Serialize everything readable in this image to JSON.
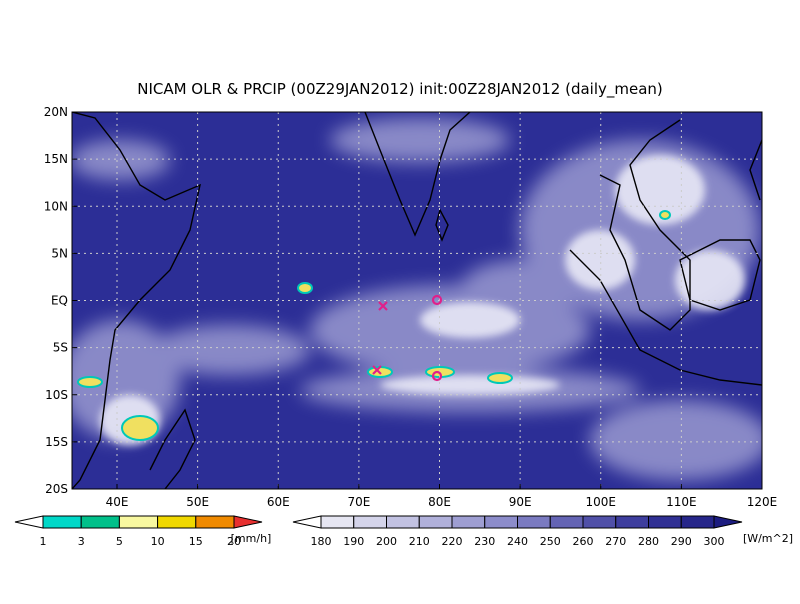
{
  "title": "NICAM OLR & PRCIP (00Z29JAN2012) init:00Z28JAN2012 (daily_mean)",
  "map": {
    "lon_labels": [
      "40E",
      "50E",
      "60E",
      "70E",
      "80E",
      "90E",
      "100E",
      "110E",
      "120E"
    ],
    "lat_labels": [
      "20N",
      "15N",
      "10N",
      "5N",
      "EQ",
      "5S",
      "10S",
      "15S",
      "20S"
    ]
  },
  "precip_legend": {
    "labels": [
      "1",
      "3",
      "5",
      "10",
      "15",
      "20"
    ],
    "unit": "[mm/h]",
    "colors": [
      "#ffffff",
      "#00d8c8",
      "#00c08a",
      "#f8f8a0",
      "#f0d800",
      "#f08a00",
      "#e83030"
    ]
  },
  "olr_legend": {
    "labels": [
      "180",
      "190",
      "200",
      "210",
      "220",
      "230",
      "240",
      "250",
      "260",
      "270",
      "280",
      "290",
      "300"
    ],
    "unit": "[W/m^2]",
    "colors": [
      "#ffffff",
      "#e6e6f2",
      "#d4d4ea",
      "#c2c2e2",
      "#b0b0da",
      "#9e9ed2",
      "#8c8cca",
      "#7a7ac0",
      "#6464b4",
      "#5050a8",
      "#3e3e9e",
      "#303094",
      "#26268a",
      "#1c1c80"
    ]
  }
}
